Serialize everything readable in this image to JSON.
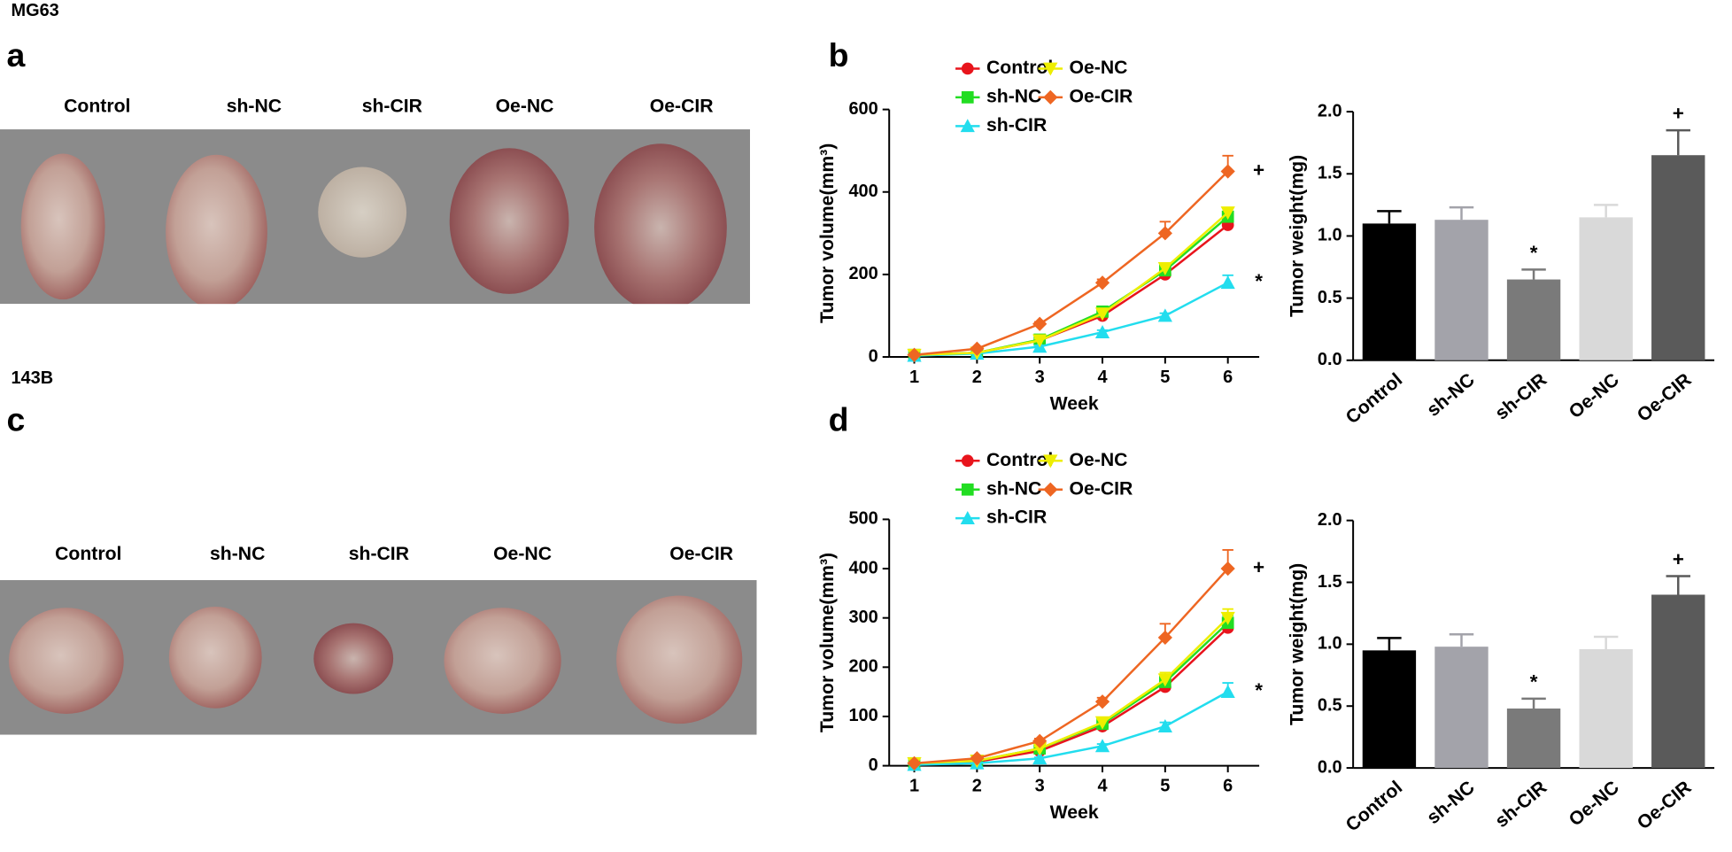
{
  "figure": {
    "rows": [
      {
        "cell_line": "MG63",
        "photo_panel": "a",
        "chart_panel": "b",
        "photo_labels": [
          "Control",
          "sh-NC",
          "sh-CIR",
          "Oe-NC",
          "Oe-CIR"
        ]
      },
      {
        "cell_line": "143B",
        "photo_panel": "c",
        "chart_panel": "d",
        "photo_labels": [
          "Control",
          "sh-NC",
          "sh-CIR",
          "Oe-NC",
          "Oe-CIR"
        ]
      }
    ]
  },
  "chart_data": [
    {
      "type": "line",
      "xlabel": "Week",
      "ylabel": "Tumor volume(mm³)",
      "x": [
        1,
        2,
        3,
        4,
        5,
        6
      ],
      "xlim": [
        0.6,
        6.5
      ],
      "xticks": [
        1,
        2,
        3,
        4,
        5,
        6
      ],
      "ylim": [
        0,
        600
      ],
      "yticks": [
        0,
        200,
        400,
        600
      ],
      "series": [
        {
          "name": "Control",
          "color": "#e8141c",
          "marker": "circle",
          "values": [
            5,
            10,
            40,
            100,
            200,
            320
          ],
          "errors": [
            1,
            2,
            4,
            6,
            8,
            10
          ]
        },
        {
          "name": "sh-NC",
          "color": "#22dd22",
          "marker": "square",
          "values": [
            5,
            10,
            42,
            110,
            210,
            340
          ],
          "errors": [
            1,
            2,
            4,
            8,
            10,
            12
          ]
        },
        {
          "name": "sh-CIR",
          "color": "#22ddee",
          "marker": "triangle-up",
          "values": [
            3,
            8,
            25,
            60,
            100,
            180
          ],
          "errors": [
            1,
            2,
            3,
            5,
            6,
            18
          ]
        },
        {
          "name": "Oe-NC",
          "color": "#eeee00",
          "marker": "triangle-down",
          "values": [
            5,
            10,
            40,
            105,
            215,
            350
          ],
          "errors": [
            1,
            2,
            4,
            8,
            10,
            12
          ]
        },
        {
          "name": "Oe-CIR",
          "color": "#ee6622",
          "marker": "diamond",
          "values": [
            5,
            20,
            80,
            180,
            300,
            450
          ],
          "errors": [
            1,
            3,
            5,
            8,
            28,
            38
          ]
        }
      ],
      "annotations": [
        {
          "text": "+",
          "series": 4
        },
        {
          "text": "*",
          "series": 2
        }
      ]
    },
    {
      "type": "bar",
      "ylabel": "Tumor weight(mg)",
      "categories": [
        "Control",
        "sh-NC",
        "sh-CIR",
        "Oe-NC",
        "Oe-CIR"
      ],
      "values": [
        1.1,
        1.13,
        0.65,
        1.15,
        1.65
      ],
      "errors": [
        0.1,
        0.1,
        0.08,
        0.1,
        0.2
      ],
      "colors": [
        "#000000",
        "#a3a3aa",
        "#7a7a7a",
        "#d9d9d9",
        "#5a5a5a"
      ],
      "ylim": [
        0,
        2.0
      ],
      "yticks": [
        {
          "value": 0,
          "label": "0.0"
        },
        {
          "value": 0.5,
          "label": "0.5"
        },
        {
          "value": 1,
          "label": "1.0"
        },
        {
          "value": 1.5,
          "label": "1.5"
        },
        {
          "value": 2,
          "label": "2.0"
        }
      ],
      "annotations": [
        {
          "text": "*",
          "category": 2
        },
        {
          "text": "+",
          "category": 4
        }
      ]
    },
    {
      "type": "line",
      "xlabel": "Week",
      "ylabel": "Tumor volume(mm³)",
      "x": [
        1,
        2,
        3,
        4,
        5,
        6
      ],
      "xlim": [
        0.6,
        6.5
      ],
      "xticks": [
        1,
        2,
        3,
        4,
        5,
        6
      ],
      "ylim": [
        0,
        500
      ],
      "yticks": [
        0,
        100,
        200,
        300,
        400,
        500
      ],
      "series": [
        {
          "name": "Control",
          "color": "#e8141c",
          "marker": "circle",
          "values": [
            5,
            8,
            30,
            80,
            160,
            280
          ],
          "errors": [
            1,
            2,
            4,
            5,
            8,
            10
          ]
        },
        {
          "name": "sh-NC",
          "color": "#22dd22",
          "marker": "square",
          "values": [
            5,
            10,
            35,
            85,
            170,
            290
          ],
          "errors": [
            1,
            2,
            4,
            6,
            12,
            15
          ]
        },
        {
          "name": "sh-CIR",
          "color": "#22ddee",
          "marker": "triangle-up",
          "values": [
            2,
            5,
            15,
            40,
            80,
            150
          ],
          "errors": [
            1,
            1,
            2,
            4,
            8,
            18
          ]
        },
        {
          "name": "Oe-NC",
          "color": "#eeee00",
          "marker": "triangle-down",
          "values": [
            5,
            10,
            35,
            88,
            175,
            300
          ],
          "errors": [
            1,
            2,
            4,
            6,
            14,
            18
          ]
        },
        {
          "name": "Oe-CIR",
          "color": "#ee6622",
          "marker": "diamond",
          "values": [
            5,
            15,
            50,
            130,
            260,
            400
          ],
          "errors": [
            1,
            3,
            5,
            8,
            28,
            38
          ]
        }
      ],
      "annotations": [
        {
          "text": "+",
          "series": 4
        },
        {
          "text": "*",
          "series": 2
        }
      ]
    },
    {
      "type": "bar",
      "ylabel": "Tumor weight(mg)",
      "categories": [
        "Control",
        "sh-NC",
        "sh-CIR",
        "Oe-NC",
        "Oe-CIR"
      ],
      "values": [
        0.95,
        0.98,
        0.48,
        0.96,
        1.4
      ],
      "errors": [
        0.1,
        0.1,
        0.08,
        0.1,
        0.15
      ],
      "colors": [
        "#000000",
        "#a3a3aa",
        "#7a7a7a",
        "#d9d9d9",
        "#5a5a5a"
      ],
      "ylim": [
        0,
        2.0
      ],
      "yticks": [
        {
          "value": 0,
          "label": "0.0"
        },
        {
          "value": 0.5,
          "label": "0.5"
        },
        {
          "value": 1,
          "label": "1.0"
        },
        {
          "value": 1.5,
          "label": "1.5"
        },
        {
          "value": 2,
          "label": "2.0"
        }
      ],
      "annotations": [
        {
          "text": "*",
          "category": 2
        },
        {
          "text": "+",
          "category": 4
        }
      ]
    }
  ]
}
